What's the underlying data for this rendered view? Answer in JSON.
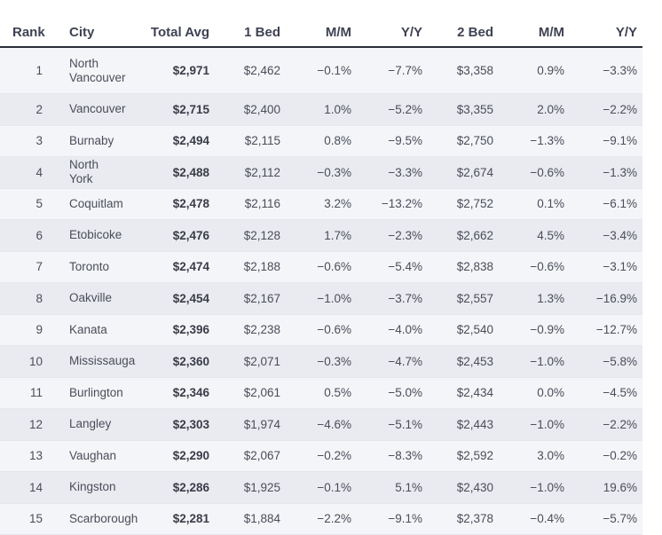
{
  "headers": {
    "rank": "Rank",
    "city": "City",
    "total_avg": "Total Avg",
    "bed1": "1 Bed",
    "mm1": "M/M",
    "yy1": "Y/Y",
    "bed2": "2 Bed",
    "mm2": "M/M",
    "yy2": "Y/Y"
  },
  "rows": [
    {
      "rank": "1",
      "city": "North Vancouver",
      "total_avg": "$2,971",
      "bed1": "$2,462",
      "mm1": "−0.1%",
      "yy1": "−7.7%",
      "bed2": "$3,358",
      "mm2": "0.9%",
      "yy2": "−3.3%"
    },
    {
      "rank": "2",
      "city": "Vancouver",
      "total_avg": "$2,715",
      "bed1": "$2,400",
      "mm1": "1.0%",
      "yy1": "−5.2%",
      "bed2": "$3,355",
      "mm2": "2.0%",
      "yy2": "−2.2%"
    },
    {
      "rank": "3",
      "city": "Burnaby",
      "total_avg": "$2,494",
      "bed1": "$2,115",
      "mm1": "0.8%",
      "yy1": "−9.5%",
      "bed2": "$2,750",
      "mm2": "−1.3%",
      "yy2": "−9.1%"
    },
    {
      "rank": "4",
      "city": "North York",
      "total_avg": "$2,488",
      "bed1": "$2,112",
      "mm1": "−0.3%",
      "yy1": "−3.3%",
      "bed2": "$2,674",
      "mm2": "−0.6%",
      "yy2": "−1.3%"
    },
    {
      "rank": "5",
      "city": "Coquitlam",
      "total_avg": "$2,478",
      "bed1": "$2,116",
      "mm1": "3.2%",
      "yy1": "−13.2%",
      "bed2": "$2,752",
      "mm2": "0.1%",
      "yy2": "−6.1%"
    },
    {
      "rank": "6",
      "city": "Etobicoke",
      "total_avg": "$2,476",
      "bed1": "$2,128",
      "mm1": "1.7%",
      "yy1": "−2.3%",
      "bed2": "$2,662",
      "mm2": "4.5%",
      "yy2": "−3.4%"
    },
    {
      "rank": "7",
      "city": "Toronto",
      "total_avg": "$2,474",
      "bed1": "$2,188",
      "mm1": "−0.6%",
      "yy1": "−5.4%",
      "bed2": "$2,838",
      "mm2": "−0.6%",
      "yy2": "−3.1%"
    },
    {
      "rank": "8",
      "city": "Oakville",
      "total_avg": "$2,454",
      "bed1": "$2,167",
      "mm1": "−1.0%",
      "yy1": "−3.7%",
      "bed2": "$2,557",
      "mm2": "1.3%",
      "yy2": "−16.9%"
    },
    {
      "rank": "9",
      "city": "Kanata",
      "total_avg": "$2,396",
      "bed1": "$2,238",
      "mm1": "−0.6%",
      "yy1": "−4.0%",
      "bed2": "$2,540",
      "mm2": "−0.9%",
      "yy2": "−12.7%"
    },
    {
      "rank": "10",
      "city": "Mississauga",
      "total_avg": "$2,360",
      "bed1": "$2,071",
      "mm1": "−0.3%",
      "yy1": "−4.7%",
      "bed2": "$2,453",
      "mm2": "−1.0%",
      "yy2": "−5.8%"
    },
    {
      "rank": "11",
      "city": "Burlington",
      "total_avg": "$2,346",
      "bed1": "$2,061",
      "mm1": "0.5%",
      "yy1": "−5.0%",
      "bed2": "$2,434",
      "mm2": "0.0%",
      "yy2": "−4.5%"
    },
    {
      "rank": "12",
      "city": "Langley",
      "total_avg": "$2,303",
      "bed1": "$1,974",
      "mm1": "−4.6%",
      "yy1": "−5.1%",
      "bed2": "$2,443",
      "mm2": "−1.0%",
      "yy2": "−2.2%"
    },
    {
      "rank": "13",
      "city": "Vaughan",
      "total_avg": "$2,290",
      "bed1": "$2,067",
      "mm1": "−0.2%",
      "yy1": "−8.3%",
      "bed2": "$2,592",
      "mm2": "3.0%",
      "yy2": "−0.2%"
    },
    {
      "rank": "14",
      "city": "Kingston",
      "total_avg": "$2,286",
      "bed1": "$1,925",
      "mm1": "−0.1%",
      "yy1": "5.1%",
      "bed2": "$2,430",
      "mm2": "−1.0%",
      "yy2": "19.6%"
    },
    {
      "rank": "15",
      "city": "Scarborough",
      "total_avg": "$2,281",
      "bed1": "$1,884",
      "mm1": "−2.2%",
      "yy1": "−9.1%",
      "bed2": "$2,378",
      "mm2": "−0.4%",
      "yy2": "−5.7%"
    }
  ]
}
